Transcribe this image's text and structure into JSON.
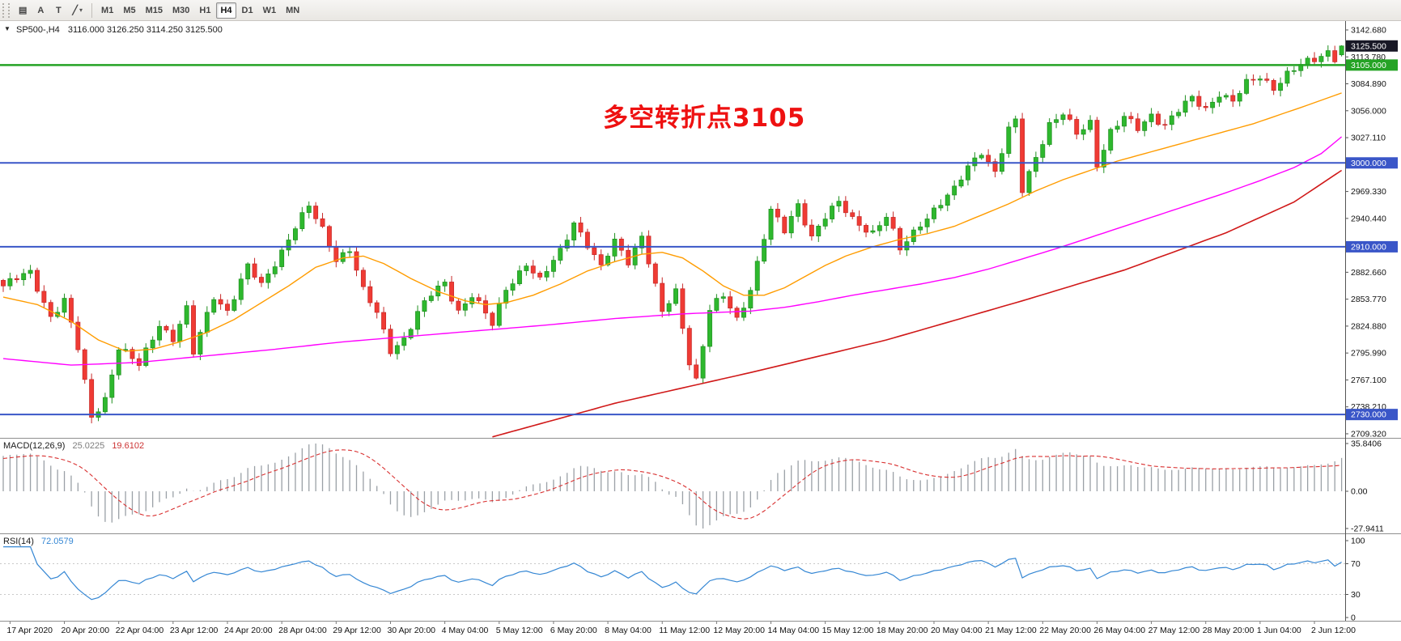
{
  "toolbar": {
    "tools": [
      {
        "name": "chart-objects",
        "glyph": "▤"
      },
      {
        "name": "text-annotation",
        "glyph": "A"
      },
      {
        "name": "text-label",
        "glyph": "T"
      },
      {
        "name": "shapes-dropdown",
        "glyph": "╱",
        "caret": "▾"
      }
    ],
    "timeframes": [
      "M1",
      "M5",
      "M15",
      "M30",
      "H1",
      "H4",
      "D1",
      "W1",
      "MN"
    ],
    "active_timeframe": "H4"
  },
  "symbol_bar": {
    "marker": "▼",
    "symbol": "SP500-,H4",
    "ohlc": "3116.000 3126.250 3114.250 3125.500"
  },
  "annotation": {
    "text": "多空转折点3105",
    "color": "#ee1111"
  },
  "indicators": {
    "macd": {
      "label": "MACD(12,26,9)",
      "main": "25.0225",
      "signal": "19.6102",
      "axis": [
        "35.8406",
        "0.00",
        "-27.9411"
      ],
      "axis_values": [
        35.8406,
        0,
        -27.9411
      ]
    },
    "rsi": {
      "label": "RSI(14)",
      "value": "72.0579",
      "axis": [
        "100",
        "70",
        "30",
        "0"
      ],
      "axis_values": [
        100,
        70,
        30,
        0
      ],
      "levels": [
        70,
        30
      ]
    }
  },
  "price_axis": {
    "ticks": [
      "3142.680",
      "3113.780",
      "3084.890",
      "3056.000",
      "3027.110",
      "2998.220",
      "2969.330",
      "2940.440",
      "2911.550",
      "2882.660",
      "2853.770",
      "2824.880",
      "2795.990",
      "2767.100",
      "2738.210",
      "2709.320"
    ],
    "badges": [
      {
        "text": "3125.500",
        "price": 3125.5,
        "color": "#181826"
      },
      {
        "text": "3105.000",
        "price": 3105,
        "color": "#25a325"
      },
      {
        "text": "3000.000",
        "price": 3000,
        "color": "#3a56c8"
      },
      {
        "text": "2910.000",
        "price": 2910,
        "color": "#3a56c8"
      },
      {
        "text": "2730.000",
        "price": 2730,
        "color": "#3a56c8"
      }
    ]
  },
  "time_axis": {
    "labels": [
      "17 Apr 2020",
      "20 Apr 20:00",
      "22 Apr 04:00",
      "23 Apr 12:00",
      "24 Apr 20:00",
      "28 Apr 04:00",
      "29 Apr 12:00",
      "30 Apr 20:00",
      "4 May 04:00",
      "5 May 12:00",
      "6 May 20:00",
      "8 May 04:00",
      "11 May 12:00",
      "12 May 20:00",
      "14 May 04:00",
      "15 May 12:00",
      "18 May 20:00",
      "20 May 04:00",
      "21 May 12:00",
      "22 May 20:00",
      "26 May 04:00",
      "27 May 12:00",
      "28 May 20:00",
      "1 Jun 04:00",
      "2 Jun 12:00"
    ]
  },
  "chart_data": {
    "type": "candlestick",
    "symbol": "SP500-",
    "timeframe": "H4",
    "candles": 198,
    "last_candle": {
      "open": 3116.0,
      "high": 3126.25,
      "low": 3114.25,
      "close": 3125.5
    },
    "close_path": [
      [
        0,
        2868
      ],
      [
        4,
        2882
      ],
      [
        7,
        2836
      ],
      [
        9,
        2852
      ],
      [
        11,
        2800
      ],
      [
        13,
        2727
      ],
      [
        15,
        2748
      ],
      [
        17,
        2802
      ],
      [
        20,
        2782
      ],
      [
        23,
        2828
      ],
      [
        25,
        2812
      ],
      [
        27,
        2842
      ],
      [
        28,
        2795
      ],
      [
        31,
        2858
      ],
      [
        33,
        2842
      ],
      [
        36,
        2888
      ],
      [
        38,
        2868
      ],
      [
        43,
        2932
      ],
      [
        45,
        2952
      ],
      [
        47,
        2928
      ],
      [
        49,
        2898
      ],
      [
        51,
        2908
      ],
      [
        53,
        2862
      ],
      [
        55,
        2838
      ],
      [
        57,
        2800
      ],
      [
        59,
        2812
      ],
      [
        61,
        2838
      ],
      [
        63,
        2858
      ],
      [
        65,
        2872
      ],
      [
        67,
        2842
      ],
      [
        69,
        2858
      ],
      [
        72,
        2826
      ],
      [
        74,
        2866
      ],
      [
        77,
        2892
      ],
      [
        79,
        2872
      ],
      [
        82,
        2906
      ],
      [
        84,
        2938
      ],
      [
        86,
        2912
      ],
      [
        88,
        2886
      ],
      [
        90,
        2916
      ],
      [
        92,
        2896
      ],
      [
        94,
        2922
      ],
      [
        97,
        2838
      ],
      [
        99,
        2862
      ],
      [
        101,
        2788
      ],
      [
        102,
        2768
      ],
      [
        104,
        2842
      ],
      [
        106,
        2856
      ],
      [
        108,
        2832
      ],
      [
        110,
        2866
      ],
      [
        113,
        2948
      ],
      [
        115,
        2926
      ],
      [
        117,
        2956
      ],
      [
        119,
        2922
      ],
      [
        121,
        2942
      ],
      [
        123,
        2956
      ],
      [
        125,
        2940
      ],
      [
        128,
        2926
      ],
      [
        130,
        2942
      ],
      [
        132,
        2906
      ],
      [
        135,
        2936
      ],
      [
        137,
        2950
      ],
      [
        140,
        2970
      ],
      [
        142,
        2996
      ],
      [
        144,
        3014
      ],
      [
        146,
        2990
      ],
      [
        148,
        3034
      ],
      [
        149,
        3044
      ],
      [
        150,
        2970
      ],
      [
        152,
        3008
      ],
      [
        154,
        3042
      ],
      [
        156,
        3052
      ],
      [
        158,
        3030
      ],
      [
        160,
        3044
      ],
      [
        161,
        3000
      ],
      [
        163,
        3034
      ],
      [
        165,
        3048
      ],
      [
        167,
        3036
      ],
      [
        169,
        3052
      ],
      [
        171,
        3042
      ],
      [
        173,
        3056
      ],
      [
        175,
        3068
      ],
      [
        177,
        3058
      ],
      [
        179,
        3076
      ],
      [
        181,
        3066
      ],
      [
        183,
        3084
      ],
      [
        185,
        3092
      ],
      [
        187,
        3082
      ],
      [
        189,
        3096
      ],
      [
        191,
        3104
      ],
      [
        193,
        3110
      ],
      [
        195,
        3120
      ],
      [
        196,
        3114
      ],
      [
        197,
        3125.5
      ]
    ],
    "moving_averages": [
      {
        "name": "ma-fast",
        "color": "#ff9c00",
        "anchors": [
          [
            0,
            2856
          ],
          [
            5,
            2848
          ],
          [
            10,
            2830
          ],
          [
            14,
            2810
          ],
          [
            18,
            2798
          ],
          [
            22,
            2800
          ],
          [
            26,
            2808
          ],
          [
            30,
            2818
          ],
          [
            34,
            2832
          ],
          [
            38,
            2850
          ],
          [
            42,
            2868
          ],
          [
            46,
            2888
          ],
          [
            50,
            2898
          ],
          [
            53,
            2900
          ],
          [
            56,
            2892
          ],
          [
            60,
            2876
          ],
          [
            64,
            2862
          ],
          [
            68,
            2852
          ],
          [
            71,
            2848
          ],
          [
            74,
            2850
          ],
          [
            78,
            2858
          ],
          [
            82,
            2870
          ],
          [
            86,
            2884
          ],
          [
            90,
            2894
          ],
          [
            94,
            2902
          ],
          [
            97,
            2904
          ],
          [
            100,
            2898
          ],
          [
            103,
            2884
          ],
          [
            106,
            2868
          ],
          [
            109,
            2858
          ],
          [
            112,
            2858
          ],
          [
            115,
            2866
          ],
          [
            118,
            2878
          ],
          [
            121,
            2890
          ],
          [
            124,
            2900
          ],
          [
            128,
            2910
          ],
          [
            132,
            2918
          ],
          [
            136,
            2924
          ],
          [
            140,
            2932
          ],
          [
            144,
            2944
          ],
          [
            148,
            2956
          ],
          [
            152,
            2970
          ],
          [
            156,
            2982
          ],
          [
            160,
            2992
          ],
          [
            164,
            3002
          ],
          [
            168,
            3010
          ],
          [
            172,
            3018
          ],
          [
            176,
            3026
          ],
          [
            180,
            3034
          ],
          [
            184,
            3042
          ],
          [
            188,
            3052
          ],
          [
            192,
            3062
          ],
          [
            197,
            3075
          ]
        ]
      },
      {
        "name": "ma-medium",
        "color": "#ff00ff",
        "anchors": [
          [
            0,
            2790
          ],
          [
            10,
            2783
          ],
          [
            20,
            2786
          ],
          [
            30,
            2793
          ],
          [
            40,
            2800
          ],
          [
            50,
            2808
          ],
          [
            60,
            2814
          ],
          [
            70,
            2820
          ],
          [
            80,
            2826
          ],
          [
            90,
            2833
          ],
          [
            100,
            2838
          ],
          [
            110,
            2841
          ],
          [
            115,
            2845
          ],
          [
            120,
            2851
          ],
          [
            125,
            2858
          ],
          [
            130,
            2864
          ],
          [
            135,
            2870
          ],
          [
            140,
            2877
          ],
          [
            145,
            2886
          ],
          [
            150,
            2897
          ],
          [
            155,
            2908
          ],
          [
            160,
            2920
          ],
          [
            165,
            2932
          ],
          [
            170,
            2944
          ],
          [
            175,
            2956
          ],
          [
            180,
            2968
          ],
          [
            185,
            2981
          ],
          [
            190,
            2995
          ],
          [
            194,
            3010
          ],
          [
            197,
            3028
          ]
        ]
      },
      {
        "name": "ma-slow",
        "color": "#d01818",
        "anchors": [
          [
            72,
            2706
          ],
          [
            90,
            2742
          ],
          [
            110,
            2775
          ],
          [
            130,
            2810
          ],
          [
            150,
            2852
          ],
          [
            165,
            2885
          ],
          [
            180,
            2925
          ],
          [
            190,
            2958
          ],
          [
            197,
            2992
          ]
        ]
      }
    ],
    "levels": [
      {
        "price": 3105,
        "color": "#25a325",
        "width": 2.4
      },
      {
        "price": 3000,
        "color": "#3a56c8",
        "width": 2
      },
      {
        "price": 2910,
        "color": "#3a56c8",
        "width": 2
      },
      {
        "price": 2730,
        "color": "#3a56c8",
        "width": 2
      }
    ],
    "candle_colors": {
      "up": "#2eb82e",
      "up_border": "#1f8f1f",
      "down": "#ef3b34",
      "down_border": "#c62828"
    }
  }
}
